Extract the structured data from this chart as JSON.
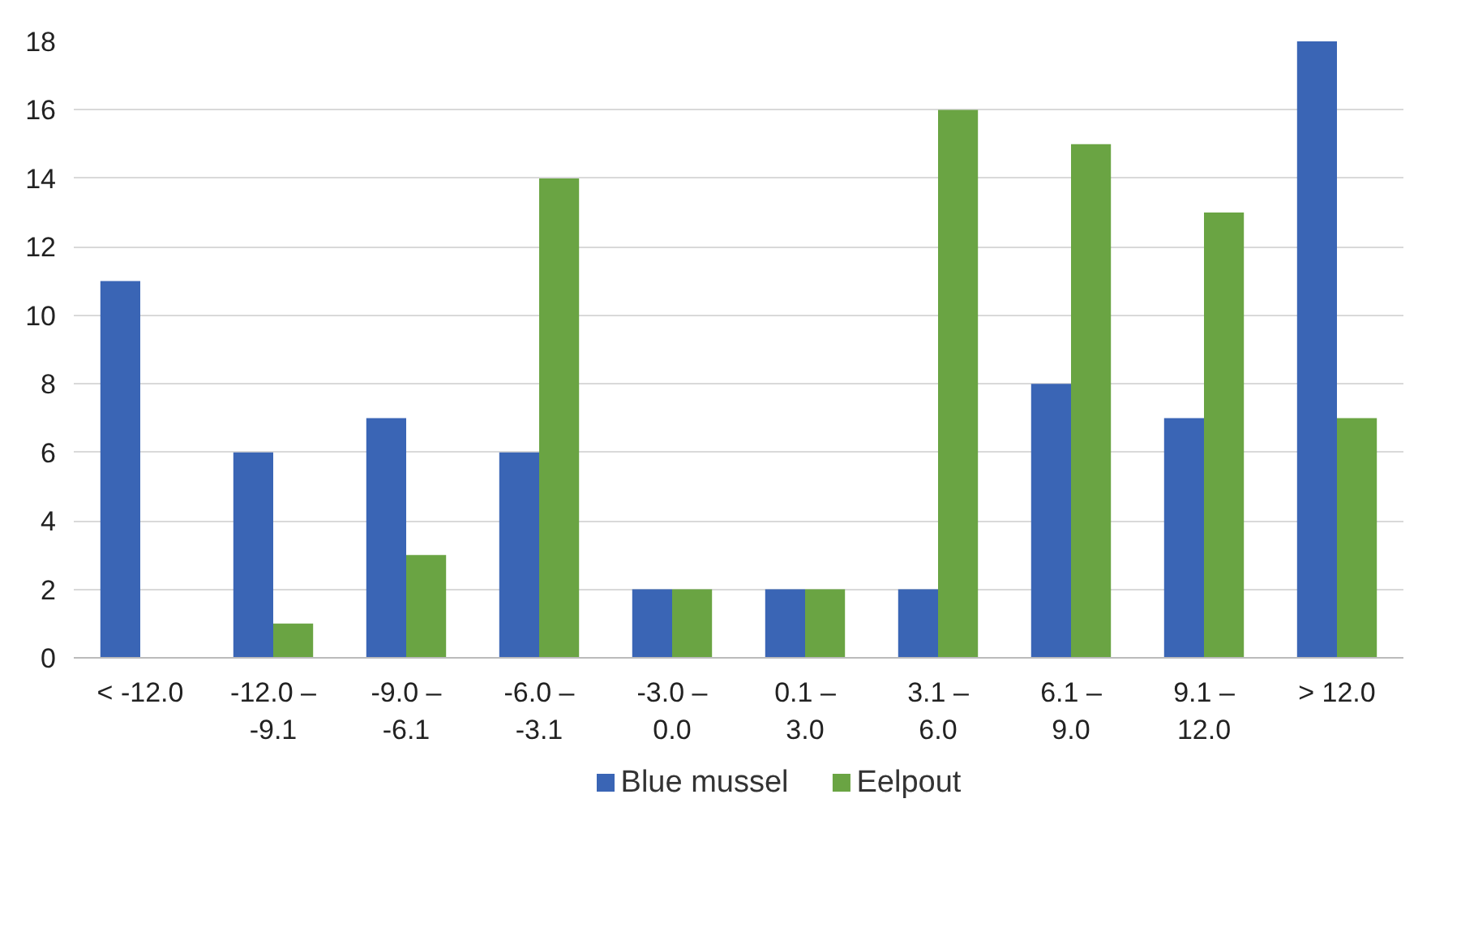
{
  "chart_data": {
    "type": "bar",
    "categories": [
      "< -12.0",
      "-12.0 –\n-9.1",
      "-9.0 –\n-6.1",
      "-6.0 –\n-3.1",
      "-3.0 –\n0.0",
      "0.1 –\n3.0",
      "3.1 –\n6.0",
      "6.1 –\n9.0",
      "9.1 –\n12.0",
      "> 12.0"
    ],
    "series": [
      {
        "name": "Blue mussel",
        "color": "#3a65b5",
        "values": [
          11,
          6,
          7,
          6,
          2,
          2,
          2,
          8,
          7,
          18
        ]
      },
      {
        "name": "Eelpout",
        "color": "#6aa443",
        "values": [
          0,
          1,
          3,
          14,
          2,
          2,
          16,
          15,
          13,
          7
        ]
      }
    ],
    "ylim": [
      0,
      18
    ],
    "yticks": [
      0,
      2,
      4,
      6,
      8,
      10,
      12,
      14,
      16,
      18
    ],
    "grid": "y",
    "legend": "bottom"
  }
}
